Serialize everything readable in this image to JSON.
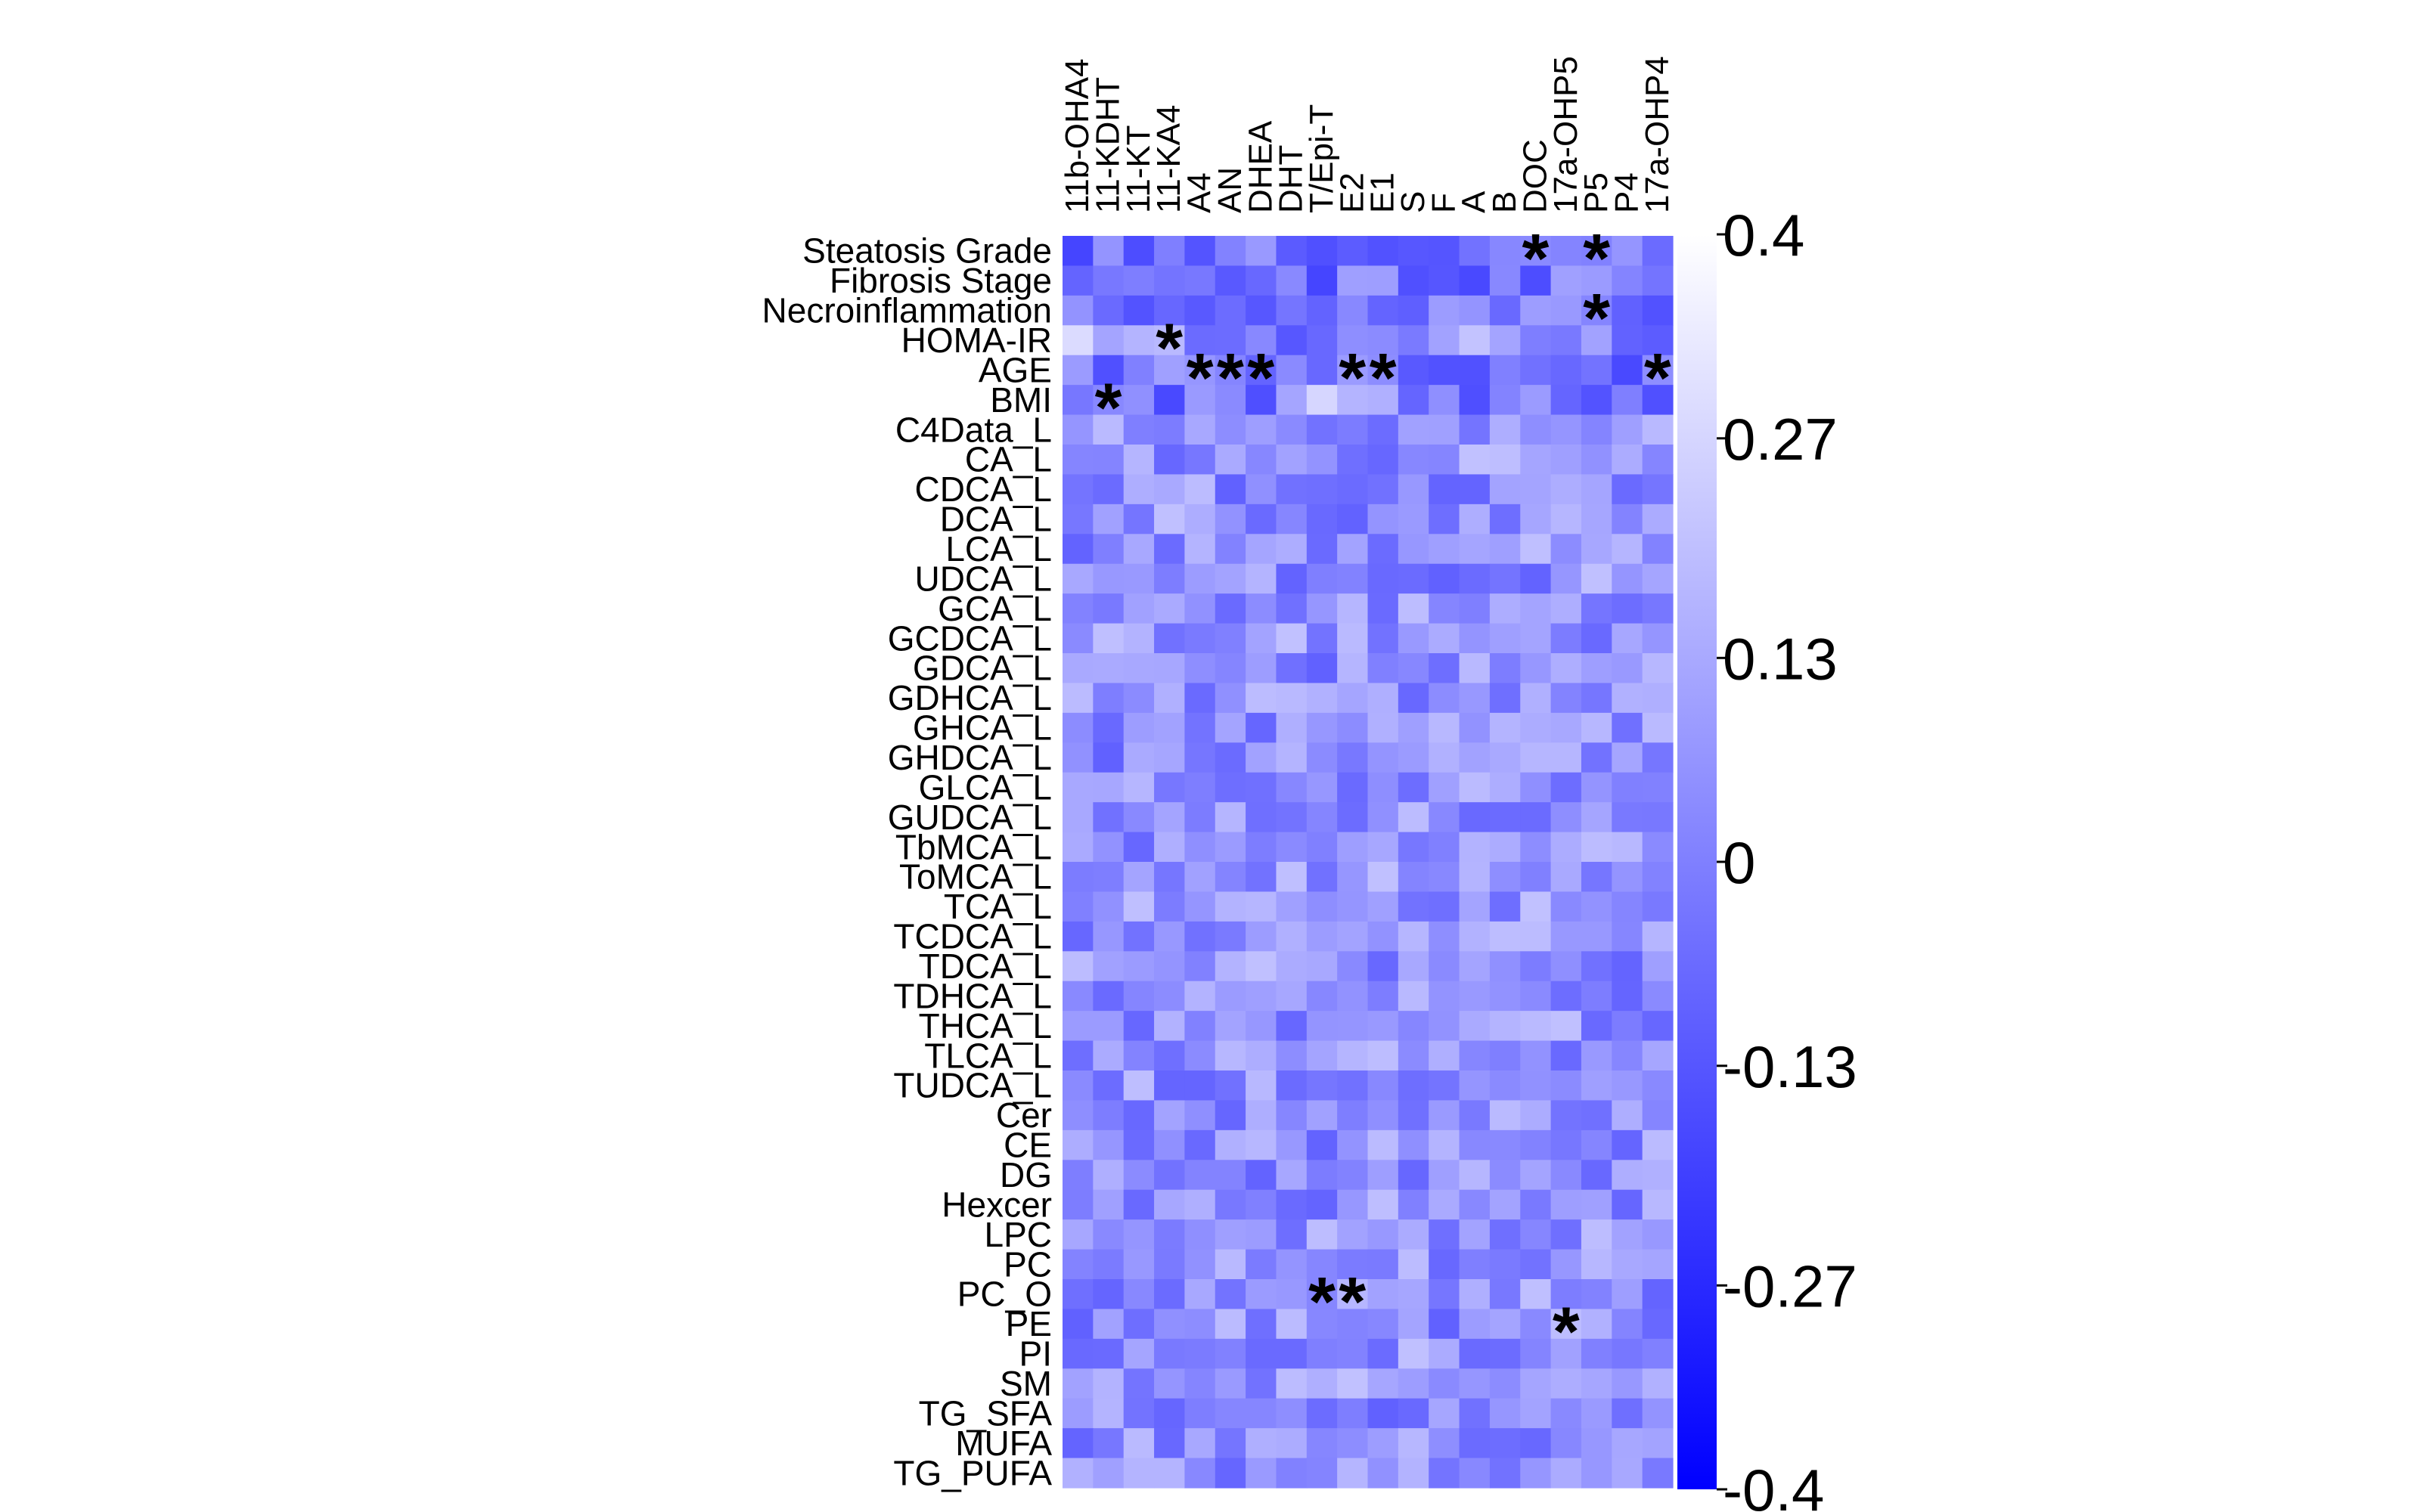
{
  "chart_data": {
    "type": "heatmap",
    "title": "",
    "xlabel": "",
    "ylabel": "",
    "columns": [
      "11b-OHA4",
      "11-KDHT",
      "11-KT",
      "11-KA4",
      "A4",
      "AN",
      "DHEA",
      "DHT",
      "T/Epi-T",
      "E2",
      "E1",
      "S",
      "F",
      "A",
      "B",
      "DOC",
      "17a-OHP5",
      "P5",
      "P4",
      "17a-OHP4"
    ],
    "rows": [
      "Steatosis Grade",
      "Fibrosis Stage",
      "Necroinflammation",
      "HOMA-IR",
      "AGE",
      "BMI",
      "C4Data_L",
      "CA_L",
      "CDCA_L",
      "DCA_L",
      "LCA_L",
      "UDCA_L",
      "GCA_L",
      "GCDCA_L",
      "GDCA_L",
      "GDHCA_L",
      "GHCA_L",
      "GHDCA_L",
      "GLCA_L",
      "GUDCA_L",
      "TbMCA_L",
      "ToMCA_L",
      "TCA_L",
      "TCDCA_L",
      "TDCA_L",
      "TDHCA_L",
      "THCA_L",
      "TLCA_L",
      "TUDCA_L",
      "Cer",
      "CE",
      "DG",
      "Hexcer",
      "LPC",
      "PC",
      "PC_O",
      "PE",
      "PI",
      "SM",
      "TG_SFA",
      "MUFA",
      "TG_PUFA"
    ],
    "colorbar": {
      "range": [
        -0.4,
        0.4
      ],
      "ticks": [
        "0.4",
        "0.27",
        "0.13",
        "0",
        "-0.13",
        "-0.27",
        "-0.4"
      ],
      "low_color": "#0000ff",
      "high_color": "#ffffff"
    },
    "significance_marker": "*",
    "significant_cells": [
      {
        "row": "Steatosis Grade",
        "column": "DOC"
      },
      {
        "row": "Steatosis Grade",
        "column": "P5"
      },
      {
        "row": "Necroinflammation",
        "column": "P5"
      },
      {
        "row": "HOMA-IR",
        "column": "11-KA4"
      },
      {
        "row": "AGE",
        "column": "A4"
      },
      {
        "row": "AGE",
        "column": "AN"
      },
      {
        "row": "AGE",
        "column": "DHEA"
      },
      {
        "row": "AGE",
        "column": "E2"
      },
      {
        "row": "AGE",
        "column": "E1"
      },
      {
        "row": "AGE",
        "column": "17a-OHP4"
      },
      {
        "row": "BMI",
        "column": "11-KDHT"
      },
      {
        "row": "PC_O",
        "column": "T/Epi-T"
      },
      {
        "row": "PC_O",
        "column": "E2"
      },
      {
        "row": "PE",
        "column": "17a-OHP5"
      }
    ]
  }
}
